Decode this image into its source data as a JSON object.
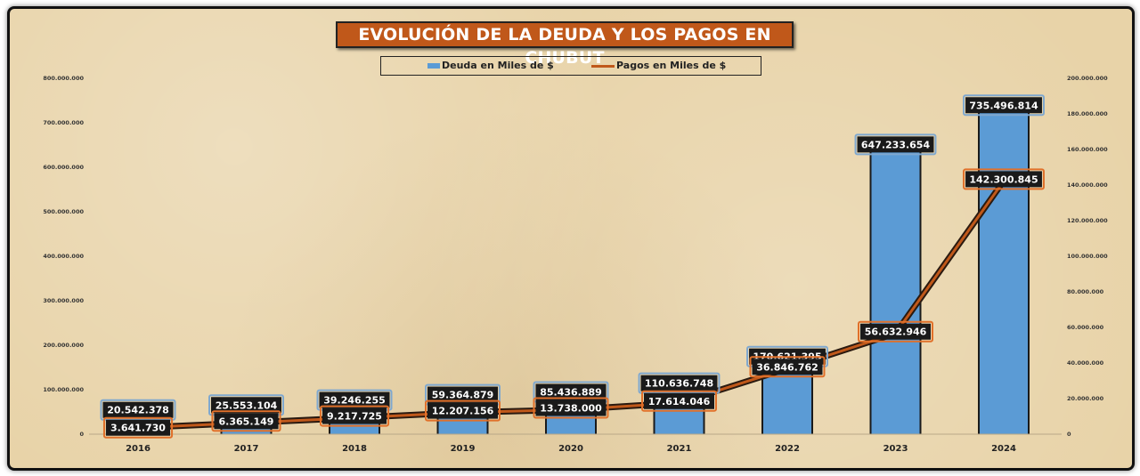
{
  "title": "EVOLUCIÓN DE LA DEUDA Y LOS PAGOS EN CHUBUT",
  "legend": {
    "deuda": "Deuda en Miles de $",
    "pagos": "Pagos en Miles de $"
  },
  "colors": {
    "bar": "#5b9bd5",
    "line": "#c0581a",
    "title_bg": "#c0581a",
    "label_bg": "#1a1a1a"
  },
  "chart_data": {
    "type": "bar",
    "categories": [
      "2016",
      "2017",
      "2018",
      "2019",
      "2020",
      "2021",
      "2022",
      "2023",
      "2024"
    ],
    "series": [
      {
        "name": "Deuda en Miles de $",
        "type": "bar",
        "axis": "left",
        "values": [
          20542378,
          25553104,
          39246255,
          59364879,
          85436889,
          110636748,
          170621395,
          647233654,
          735496814
        ],
        "labels": [
          "20.542.378",
          "25.553.104",
          "39.246.255",
          "59.364.879",
          "85.436.889",
          "110.636.748",
          "170.621.395",
          "647.233.654",
          "735.496.814"
        ]
      },
      {
        "name": "Pagos en Miles de $",
        "type": "line",
        "axis": "right",
        "values": [
          3641730,
          6365149,
          9217725,
          12207156,
          13738000,
          17614046,
          36846762,
          56632946,
          142300845
        ],
        "labels": [
          "3.641.730",
          "6.365.149",
          "9.217.725",
          "12.207.156",
          "13.738.000",
          "17.614.046",
          "36.846.762",
          "56.632.946",
          "142.300.845"
        ]
      }
    ],
    "y_left": {
      "lim": [
        0,
        800000000
      ],
      "ticks": [
        0,
        100000000,
        200000000,
        300000000,
        400000000,
        500000000,
        600000000,
        700000000,
        800000000
      ],
      "tick_labels": [
        "0",
        "100.000.000",
        "200.000.000",
        "300.000.000",
        "400.000.000",
        "500.000.000",
        "600.000.000",
        "700.000.000",
        "800.000.000"
      ]
    },
    "y_right": {
      "lim": [
        0,
        200000000
      ],
      "ticks": [
        0,
        20000000,
        40000000,
        60000000,
        80000000,
        100000000,
        120000000,
        140000000,
        160000000,
        180000000,
        200000000
      ],
      "tick_labels": [
        "0",
        "20.000.000",
        "40.000.000",
        "60.000.000",
        "80.000.000",
        "100.000.000",
        "120.000.000",
        "140.000.000",
        "160.000.000",
        "180.000.000",
        "200.000.000"
      ]
    },
    "grid": false,
    "legend_position": "top"
  }
}
